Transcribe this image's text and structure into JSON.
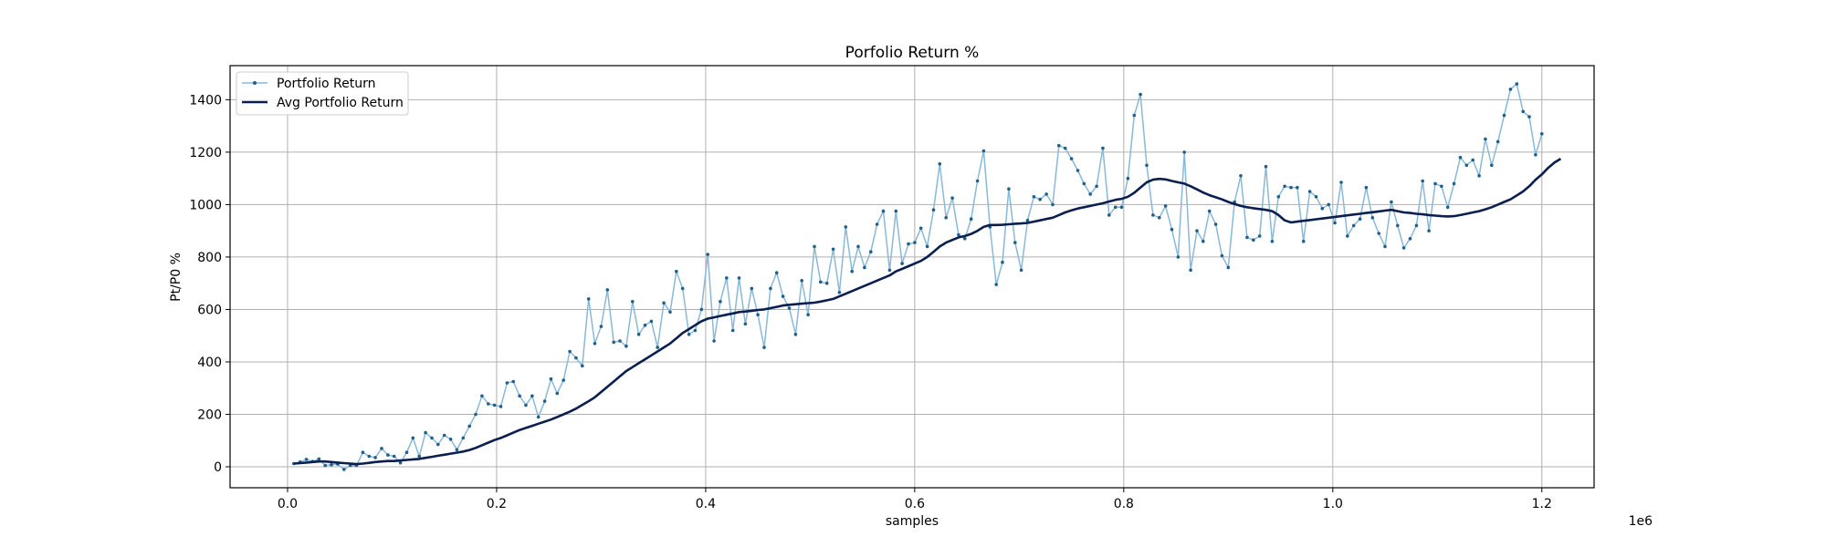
{
  "chart_data": {
    "type": "line",
    "title": "Porfolio Return %",
    "xlabel": "samples",
    "ylabel": "Pt/P0 %",
    "x_offset_label": "1e6",
    "xlim": [
      -0.055,
      1.25
    ],
    "ylim": [
      -80,
      1530
    ],
    "x_ticks": [
      0.0,
      0.2,
      0.4,
      0.6,
      0.8,
      1.0,
      1.2
    ],
    "x_tick_labels": [
      "0.0",
      "0.2",
      "0.4",
      "0.6",
      "0.8",
      "1.0",
      "1.2"
    ],
    "y_ticks": [
      0,
      200,
      400,
      600,
      800,
      1000,
      1200,
      1400
    ],
    "y_tick_labels": [
      "0",
      "200",
      "400",
      "600",
      "800",
      "1000",
      "1200",
      "1400"
    ],
    "grid": true,
    "legend_position": "top-left",
    "x_start": 0.006,
    "x_step": 0.006,
    "series": [
      {
        "name": "Portfolio Return",
        "color": "#8ab8d8",
        "marker_color": "#1f5f8b",
        "values": [
          12,
          18,
          28,
          20,
          30,
          5,
          8,
          10,
          -10,
          5,
          5,
          55,
          40,
          35,
          70,
          45,
          40,
          15,
          55,
          110,
          40,
          130,
          110,
          85,
          120,
          105,
          65,
          110,
          155,
          200,
          270,
          240,
          235,
          230,
          320,
          325,
          270,
          235,
          270,
          190,
          250,
          335,
          280,
          330,
          440,
          415,
          385,
          640,
          470,
          535,
          675,
          475,
          480,
          460,
          630,
          505,
          540,
          555,
          455,
          625,
          590,
          745,
          680,
          505,
          520,
          600,
          810,
          480,
          630,
          720,
          520,
          720,
          545,
          680,
          580,
          455,
          680,
          740,
          650,
          605,
          505,
          710,
          580,
          840,
          705,
          700,
          830,
          665,
          915,
          745,
          840,
          760,
          820,
          925,
          975,
          750,
          975,
          775,
          850,
          855,
          910,
          840,
          980,
          1155,
          950,
          1025,
          885,
          870,
          945,
          1090,
          1205,
          915,
          695,
          780,
          1060,
          855,
          750,
          940,
          1030,
          1020,
          1040,
          1000,
          1225,
          1215,
          1175,
          1130,
          1080,
          1040,
          1070,
          1215,
          960,
          990,
          990,
          1100,
          1340,
          1420,
          1150,
          960,
          950,
          995,
          905,
          800,
          1200,
          750,
          900,
          860,
          975,
          925,
          805,
          760,
          1010,
          1110,
          875,
          865,
          880,
          1145,
          860,
          1030,
          1070,
          1065,
          1065,
          860,
          1050,
          1030,
          985,
          1000,
          930,
          1085,
          880,
          920,
          945,
          1065,
          950,
          890,
          840,
          1010,
          920,
          835,
          870,
          920,
          1090,
          900,
          1080,
          1070,
          990,
          1080,
          1180,
          1150,
          1170,
          1110,
          1250,
          1150,
          1240,
          1340,
          1440,
          1460,
          1355,
          1335,
          1190,
          1270
        ]
      },
      {
        "name": "Avg Portfolio Return",
        "color": "#0a1f4f",
        "values": [
          12,
          14,
          16,
          18,
          20,
          20,
          18,
          16,
          14,
          12,
          10,
          12,
          15,
          18,
          20,
          22,
          22,
          24,
          26,
          28,
          30,
          34,
          38,
          42,
          46,
          50,
          54,
          58,
          64,
          72,
          82,
          92,
          102,
          110,
          120,
          130,
          140,
          148,
          156,
          164,
          172,
          180,
          190,
          200,
          210,
          222,
          236,
          250,
          265,
          285,
          305,
          325,
          345,
          365,
          380,
          395,
          410,
          425,
          440,
          455,
          470,
          490,
          510,
          525,
          540,
          555,
          565,
          570,
          575,
          580,
          585,
          590,
          592,
          595,
          598,
          600,
          605,
          610,
          615,
          618,
          620,
          622,
          624,
          626,
          630,
          635,
          640,
          650,
          660,
          670,
          680,
          690,
          700,
          710,
          720,
          730,
          745,
          755,
          765,
          775,
          785,
          800,
          820,
          840,
          855,
          865,
          875,
          880,
          888,
          900,
          915,
          922,
          922,
          923,
          925,
          927,
          928,
          930,
          935,
          940,
          945,
          950,
          960,
          970,
          978,
          985,
          990,
          995,
          1000,
          1005,
          1012,
          1018,
          1022,
          1030,
          1045,
          1065,
          1085,
          1095,
          1098,
          1096,
          1090,
          1085,
          1080,
          1070,
          1058,
          1046,
          1036,
          1028,
          1020,
          1010,
          1002,
          995,
          990,
          986,
          983,
          980,
          975,
          960,
          940,
          932,
          935,
          938,
          941,
          944,
          947,
          950,
          953,
          956,
          959,
          962,
          965,
          968,
          971,
          974,
          977,
          980,
          975,
          970,
          968,
          965,
          963,
          960,
          958,
          956,
          955,
          956,
          960,
          965,
          970,
          975,
          982,
          990,
          1000,
          1010,
          1020,
          1035,
          1050,
          1070,
          1095,
          1115,
          1140,
          1160,
          1175
        ]
      }
    ]
  }
}
